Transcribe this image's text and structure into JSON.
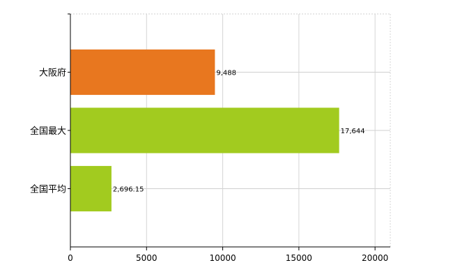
{
  "chart_data": {
    "type": "bar",
    "orientation": "horizontal",
    "categories": [
      "大阪府",
      "全国最大",
      "全国平均"
    ],
    "values": [
      9488,
      17644,
      2696.15
    ],
    "value_labels": [
      "9,488",
      "17,644",
      "2,696.15"
    ],
    "bar_colors": [
      "#e8771f",
      "#a2cb1f",
      "#a2cb1f"
    ],
    "xlim": [
      0,
      21000
    ],
    "x_ticks": [
      0,
      5000,
      10000,
      15000,
      20000
    ],
    "x_tick_labels": [
      "0",
      "5000",
      "10000",
      "15000",
      "20000"
    ],
    "grid": true,
    "legend": "none",
    "title": "",
    "xlabel": "",
    "ylabel": ""
  }
}
